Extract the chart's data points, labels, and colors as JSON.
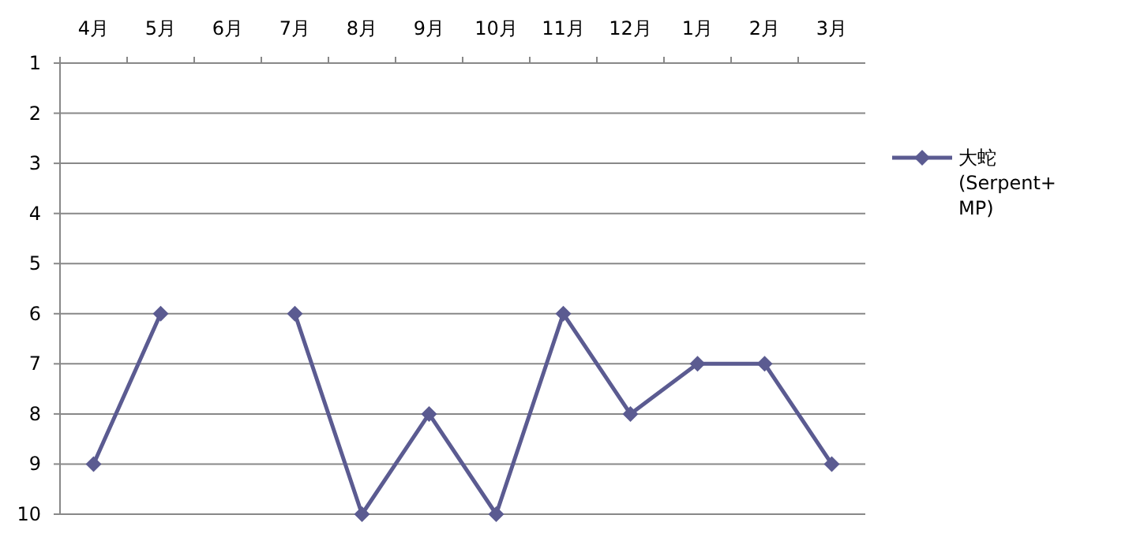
{
  "chart_data": {
    "type": "line",
    "categories": [
      "4月",
      "5月",
      "6月",
      "7月",
      "8月",
      "9月",
      "10月",
      "11月",
      "12月",
      "1月",
      "2月",
      "3月"
    ],
    "series": [
      {
        "name": "大蛇\n(Serpent+\nMP)",
        "color": "#5b5b91",
        "values": [
          9,
          6,
          null,
          6,
          10,
          8,
          10,
          6,
          8,
          7,
          7,
          9
        ]
      }
    ],
    "ylim": [
      10,
      1
    ],
    "yticks": [
      1,
      2,
      3,
      4,
      5,
      6,
      7,
      8,
      9,
      10
    ],
    "grid": "y",
    "legend": "right",
    "marker": "diamond",
    "line_style": "solid"
  }
}
